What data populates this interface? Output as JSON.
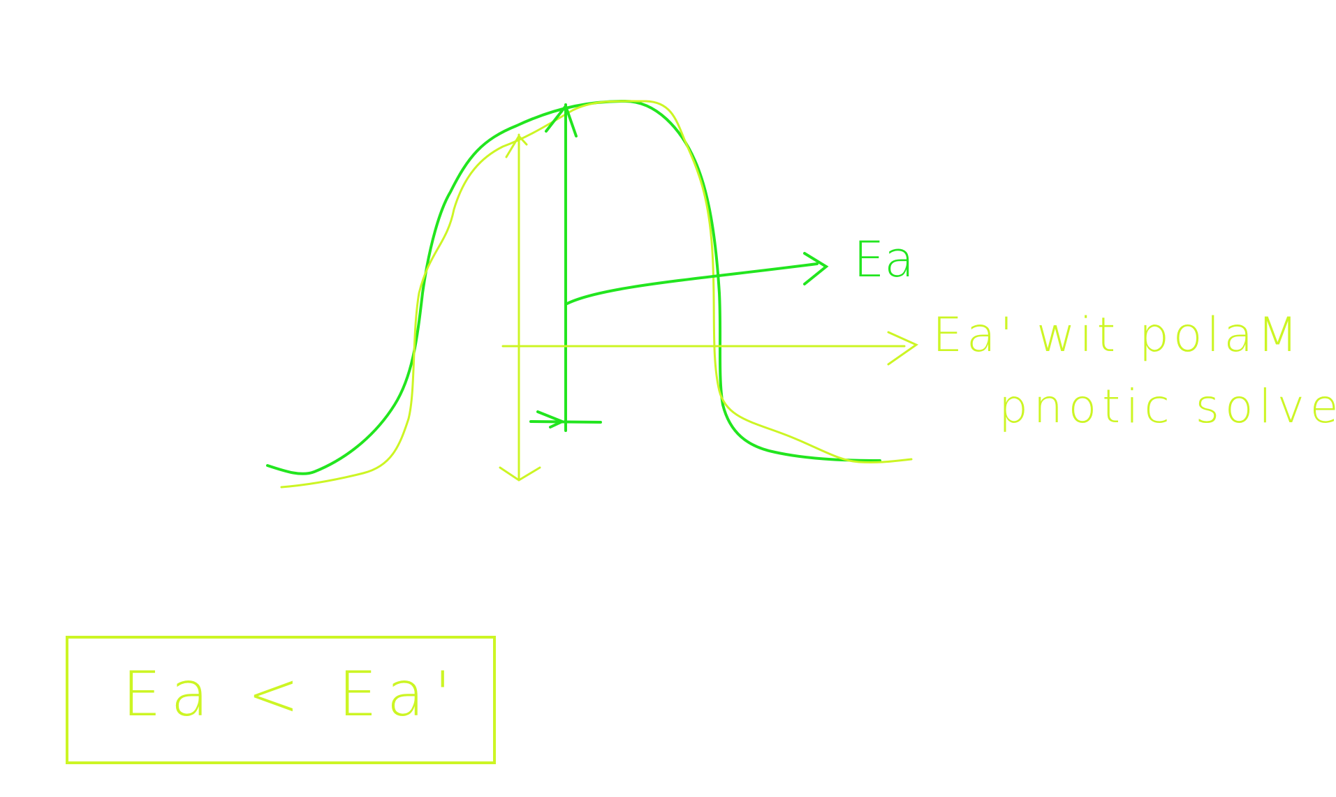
{
  "labels": {
    "ea": "Ea",
    "ea_prime_line1": "Ea' wit polaM",
    "ea_prime_line2": "pnotic solvent",
    "comparison": "Ea < Ea'"
  },
  "colors": {
    "background": "#ffffff",
    "green": "#22e51f",
    "yellow_green": "#ccf524"
  }
}
